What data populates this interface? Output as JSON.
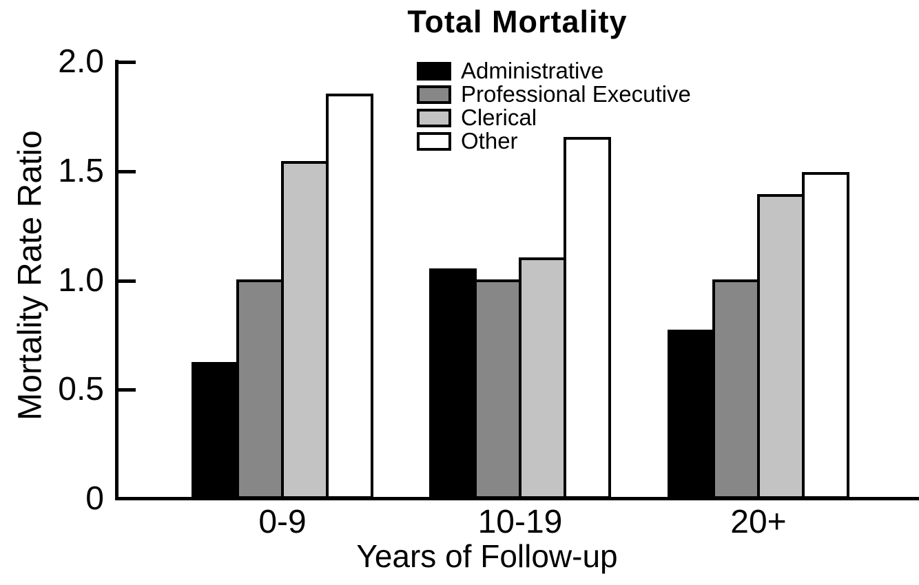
{
  "chart_data": {
    "type": "bar",
    "title": "Total Mortality",
    "xlabel": "Years of Follow-up",
    "ylabel": "Mortality Rate Ratio",
    "categories": [
      "0-9",
      "10-19",
      "20+"
    ],
    "series": [
      {
        "name": "Administrative",
        "color": "#000000",
        "values": [
          0.62,
          1.05,
          0.77
        ]
      },
      {
        "name": "Professional Executive",
        "color": "#878787",
        "values": [
          1.0,
          1.0,
          1.0
        ]
      },
      {
        "name": "Clerical",
        "color": "#c3c3c3",
        "values": [
          1.54,
          1.1,
          1.39
        ]
      },
      {
        "name": "Other",
        "color": "#ffffff",
        "values": [
          1.85,
          1.65,
          1.49
        ]
      }
    ],
    "ylim": [
      0,
      2.0
    ],
    "yticks": [
      0,
      0.5,
      1.0,
      1.5,
      2.0
    ],
    "ytick_labels": [
      "0",
      "0.5",
      "1.0",
      "1.5",
      "2.0"
    ],
    "bar_border_color": "#000000",
    "axis_color": "#000000",
    "background_color": "#ffffff",
    "grid": false,
    "legend_position": "top-center-inside"
  }
}
